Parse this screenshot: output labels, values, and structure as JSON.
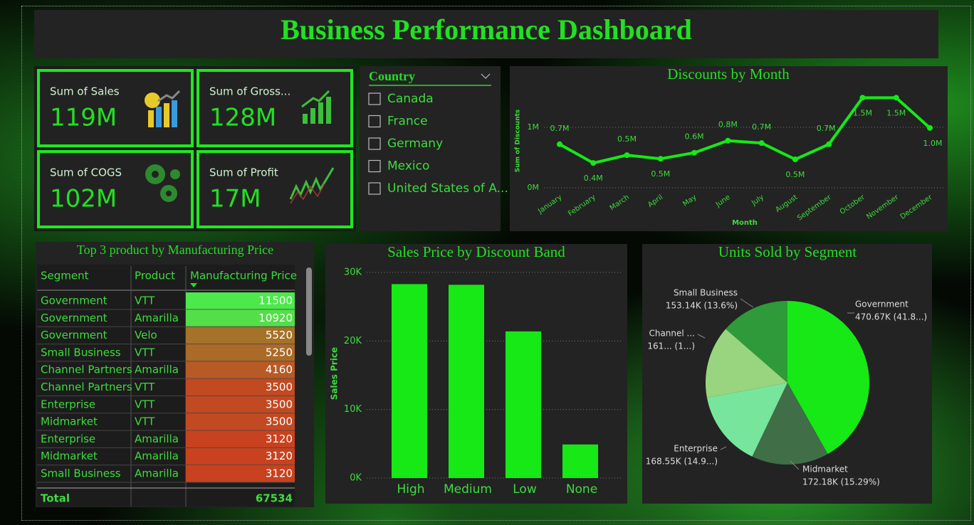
{
  "header": {
    "title": "Business Performance Dashboard"
  },
  "kpis": [
    {
      "label": "Sum of Sales",
      "value": "119M"
    },
    {
      "label": "Sum of Gross...",
      "value": "128M"
    },
    {
      "label": "Sum of COGS",
      "value": "102M"
    },
    {
      "label": "Sum of Profit",
      "value": "17M"
    }
  ],
  "slicer": {
    "title": "Country",
    "items": [
      "Canada",
      "France",
      "Germany",
      "Mexico",
      "United States of A..."
    ]
  },
  "table": {
    "title": "Top 3 product by Manufacturing Price",
    "columns": [
      "Segment",
      "Product",
      "Manufacturing Price"
    ],
    "rows": [
      [
        "Government",
        "VTT",
        "11500"
      ],
      [
        "Government",
        "Amarilla",
        "10920"
      ],
      [
        "Government",
        "Velo",
        "5520"
      ],
      [
        "Small Business",
        "VTT",
        "5250"
      ],
      [
        "Channel Partners",
        "Amarilla",
        "4160"
      ],
      [
        "Channel Partners",
        "VTT",
        "3500"
      ],
      [
        "Enterprise",
        "VTT",
        "3500"
      ],
      [
        "Midmarket",
        "VTT",
        "3500"
      ],
      [
        "Enterprise",
        "Amarilla",
        "3120"
      ],
      [
        "Midmarket",
        "Amarilla",
        "3120"
      ],
      [
        "Small Business",
        "Amarilla",
        "3120"
      ]
    ],
    "cell_colors": [
      "#4ce84c",
      "#52df48",
      "#a5722a",
      "#aa6a28",
      "#b75a25",
      "#c14a22",
      "#c14a22",
      "#c14a22",
      "#c8421f",
      "#c8421f",
      "#c8421f"
    ],
    "total": [
      "Total",
      "67534"
    ]
  },
  "chart_data": [
    {
      "type": "line",
      "title": "Discounts by Month",
      "x_label": "Month",
      "y_label": "Sum of Discounts",
      "categories": [
        "January",
        "February",
        "March",
        "April",
        "May",
        "June",
        "July",
        "August",
        "September",
        "October",
        "November",
        "December"
      ],
      "series": [
        {
          "name": "Sum of Discounts",
          "color": "#16e916",
          "values": [
            0.72,
            0.41,
            0.54,
            0.48,
            0.58,
            0.78,
            0.74,
            0.47,
            0.72,
            1.49,
            1.49,
            0.99
          ],
          "value_labels": [
            "0.7M",
            "0.4M",
            "0.5M",
            "0.5M",
            "0.6M",
            "0.8M",
            "0.7M",
            "0.5M",
            "0.7M",
            "1.5M",
            "1.5M",
            "1.0M"
          ]
        }
      ],
      "ylim": [
        0,
        1.6
      ],
      "yticks": [
        {
          "value": 0,
          "label": "0M"
        },
        {
          "value": 1,
          "label": "1M"
        }
      ],
      "grid": true
    },
    {
      "type": "bar",
      "title": "Sales Price by Discount Band",
      "y_label": "Sales Price",
      "categories": [
        "High",
        "Medium",
        "Low",
        "None"
      ],
      "values": [
        28300,
        28200,
        21400,
        4900
      ],
      "color": "#16e916",
      "ylim": [
        0,
        30000
      ],
      "yticks": [
        {
          "value": 0,
          "label": "0K"
        },
        {
          "value": 10000,
          "label": "10K"
        },
        {
          "value": 20000,
          "label": "20K"
        },
        {
          "value": 30000,
          "label": "30K"
        }
      ],
      "grid": true
    },
    {
      "type": "pie",
      "title": "Units Sold by Segment",
      "categories": [
        "Government",
        "Midmarket",
        "Enterprise",
        "Channel ...",
        "Small Business"
      ],
      "values": [
        470.67,
        172.18,
        168.55,
        161.3,
        153.14
      ],
      "value_labels": [
        "470.67K (41.8...)",
        "172.18K (15.29%)",
        "168.55K (14.9...)",
        "161... (1...)",
        "153.14K (13.6%)"
      ],
      "colors": [
        "#16e916",
        "#3f6e47",
        "#77e59b",
        "#99d47f",
        "#2e9a3a"
      ]
    }
  ]
}
